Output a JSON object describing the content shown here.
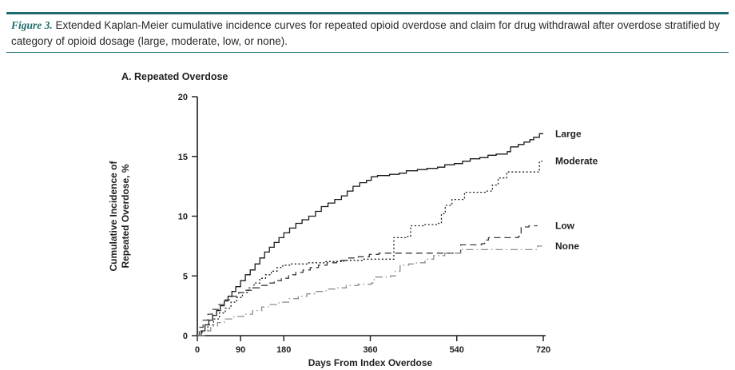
{
  "caption": {
    "label": "Figure 3.",
    "text": "Extended Kaplan-Meier cumulative incidence curves for repeated opioid overdose and claim for drug withdrawal after overdose stratified by category of opioid dosage (large, moderate, low, or none)."
  },
  "colors": {
    "rule_teal": "#1e6b6d",
    "figure_label_teal": "#1e6b6d",
    "axis": "#1a1a1a",
    "text": "#1f1f1f"
  },
  "chart_data": {
    "type": "line",
    "subtype": "kaplan-meier-step",
    "title": "A. Repeated Overdose",
    "xlabel": "Days From Index Overdose",
    "ylabel": "Cumulative Incidence of\nRepeated Overdose, %",
    "xlim": [
      0,
      720
    ],
    "ylim": [
      0,
      20
    ],
    "xticks": [
      0,
      90,
      180,
      360,
      540,
      720
    ],
    "yticks": [
      0,
      5,
      10,
      15,
      20
    ],
    "grid": false,
    "legend_position": "labels-at-line-ends",
    "series": [
      {
        "name": "Large",
        "style": "solid",
        "color": "#1a1a1a",
        "points": [
          [
            0,
            0
          ],
          [
            8,
            0.4
          ],
          [
            16,
            0.9
          ],
          [
            24,
            1.3
          ],
          [
            32,
            1.7
          ],
          [
            40,
            2.1
          ],
          [
            48,
            2.5
          ],
          [
            56,
            2.9
          ],
          [
            64,
            3.3
          ],
          [
            72,
            3.7
          ],
          [
            80,
            4.1
          ],
          [
            90,
            4.6
          ],
          [
            100,
            5.1
          ],
          [
            110,
            5.5
          ],
          [
            120,
            6.0
          ],
          [
            130,
            6.5
          ],
          [
            140,
            7.0
          ],
          [
            150,
            7.4
          ],
          [
            160,
            7.8
          ],
          [
            170,
            8.2
          ],
          [
            180,
            8.6
          ],
          [
            192,
            9.0
          ],
          [
            205,
            9.4
          ],
          [
            218,
            9.7
          ],
          [
            232,
            10.0
          ],
          [
            246,
            10.4
          ],
          [
            258,
            10.8
          ],
          [
            272,
            11.1
          ],
          [
            286,
            11.4
          ],
          [
            300,
            11.7
          ],
          [
            312,
            12.1
          ],
          [
            324,
            12.5
          ],
          [
            338,
            12.8
          ],
          [
            352,
            13.0
          ],
          [
            362,
            13.3
          ],
          [
            375,
            13.4
          ],
          [
            400,
            13.5
          ],
          [
            420,
            13.6
          ],
          [
            435,
            13.8
          ],
          [
            458,
            13.9
          ],
          [
            478,
            14.0
          ],
          [
            500,
            14.1
          ],
          [
            515,
            14.3
          ],
          [
            535,
            14.4
          ],
          [
            552,
            14.6
          ],
          [
            568,
            14.8
          ],
          [
            588,
            14.9
          ],
          [
            605,
            15.1
          ],
          [
            622,
            15.2
          ],
          [
            645,
            15.4
          ],
          [
            652,
            15.8
          ],
          [
            668,
            16.0
          ],
          [
            680,
            16.2
          ],
          [
            692,
            16.4
          ],
          [
            700,
            16.6
          ],
          [
            712,
            16.9
          ],
          [
            720,
            16.9
          ]
        ]
      },
      {
        "name": "Moderate",
        "style": "dotted",
        "color": "#1a1a1a",
        "points": [
          [
            0,
            0
          ],
          [
            10,
            0.4
          ],
          [
            22,
            0.9
          ],
          [
            34,
            1.4
          ],
          [
            46,
            1.9
          ],
          [
            58,
            2.3
          ],
          [
            70,
            2.8
          ],
          [
            82,
            3.2
          ],
          [
            94,
            3.6
          ],
          [
            106,
            4.0
          ],
          [
            118,
            4.4
          ],
          [
            130,
            4.8
          ],
          [
            142,
            5.1
          ],
          [
            154,
            5.4
          ],
          [
            166,
            5.7
          ],
          [
            178,
            5.9
          ],
          [
            195,
            6.0
          ],
          [
            230,
            6.1
          ],
          [
            265,
            6.2
          ],
          [
            305,
            6.3
          ],
          [
            345,
            6.4
          ],
          [
            405,
            6.4
          ],
          [
            409,
            8.2
          ],
          [
            438,
            8.3
          ],
          [
            444,
            9.2
          ],
          [
            470,
            9.3
          ],
          [
            502,
            9.4
          ],
          [
            508,
            10.2
          ],
          [
            516,
            10.9
          ],
          [
            530,
            11.4
          ],
          [
            556,
            12.0
          ],
          [
            600,
            12.1
          ],
          [
            614,
            12.6
          ],
          [
            626,
            13.2
          ],
          [
            644,
            13.7
          ],
          [
            706,
            13.7
          ],
          [
            712,
            14.6
          ],
          [
            718,
            14.6
          ]
        ]
      },
      {
        "name": "Low",
        "style": "dashed",
        "color": "#3d3d3d",
        "points": [
          [
            0,
            0
          ],
          [
            4,
            0.7
          ],
          [
            12,
            1.3
          ],
          [
            22,
            1.8
          ],
          [
            32,
            2.2
          ],
          [
            45,
            2.6
          ],
          [
            58,
            3.0
          ],
          [
            72,
            3.3
          ],
          [
            86,
            3.6
          ],
          [
            100,
            3.8
          ],
          [
            115,
            4.0
          ],
          [
            130,
            4.2
          ],
          [
            145,
            4.4
          ],
          [
            160,
            4.6
          ],
          [
            175,
            4.8
          ],
          [
            190,
            5.1
          ],
          [
            205,
            5.3
          ],
          [
            220,
            5.5
          ],
          [
            235,
            5.7
          ],
          [
            252,
            5.9
          ],
          [
            270,
            6.1
          ],
          [
            290,
            6.3
          ],
          [
            312,
            6.5
          ],
          [
            335,
            6.6
          ],
          [
            358,
            6.8
          ],
          [
            378,
            6.9
          ],
          [
            543,
            6.9
          ],
          [
            548,
            7.6
          ],
          [
            592,
            7.7
          ],
          [
            598,
            8.0
          ],
          [
            606,
            8.2
          ],
          [
            668,
            8.3
          ],
          [
            674,
            9.1
          ],
          [
            690,
            9.2
          ],
          [
            708,
            9.2
          ]
        ]
      },
      {
        "name": "None",
        "style": "dashdot",
        "color": "#8c8c8c",
        "points": [
          [
            0,
            0
          ],
          [
            14,
            0.4
          ],
          [
            28,
            0.8
          ],
          [
            42,
            1.1
          ],
          [
            56,
            1.4
          ],
          [
            76,
            1.6
          ],
          [
            96,
            1.8
          ],
          [
            115,
            2.1
          ],
          [
            134,
            2.4
          ],
          [
            152,
            2.6
          ],
          [
            170,
            2.8
          ],
          [
            190,
            3.1
          ],
          [
            210,
            3.3
          ],
          [
            228,
            3.5
          ],
          [
            248,
            3.7
          ],
          [
            268,
            3.9
          ],
          [
            288,
            4.0
          ],
          [
            310,
            4.2
          ],
          [
            335,
            4.3
          ],
          [
            362,
            4.4
          ],
          [
            368,
            4.9
          ],
          [
            402,
            5.0
          ],
          [
            412,
            5.4
          ],
          [
            422,
            5.9
          ],
          [
            440,
            6.0
          ],
          [
            456,
            6.1
          ],
          [
            474,
            6.4
          ],
          [
            492,
            6.7
          ],
          [
            515,
            6.9
          ],
          [
            548,
            7.2
          ],
          [
            700,
            7.2
          ],
          [
            708,
            7.5
          ],
          [
            718,
            7.5
          ]
        ]
      }
    ]
  }
}
